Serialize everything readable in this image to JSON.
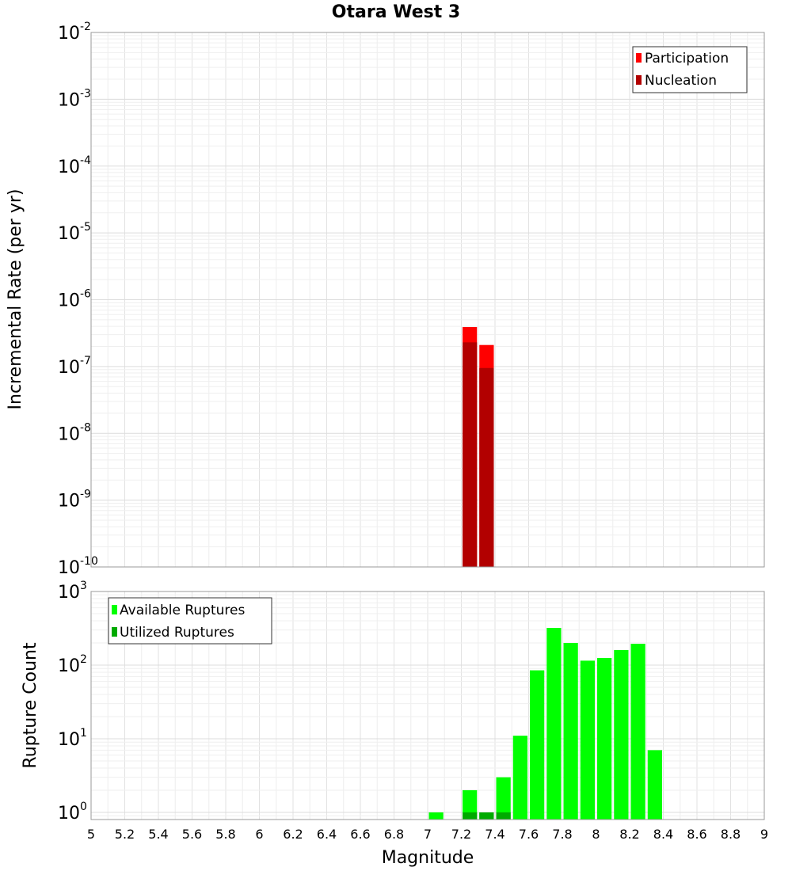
{
  "chart_data": [
    {
      "type": "bar",
      "title": "Otara West 3",
      "xlabel": "",
      "ylabel": "Incremental Rate (per yr)",
      "yscale": "log",
      "ylim": [
        1e-10,
        0.01
      ],
      "xlim": [
        5,
        9
      ],
      "bin_width": 0.1,
      "y_ticks": [
        {
          "base": "10",
          "exp": "-10",
          "value": 1e-10
        },
        {
          "base": "10",
          "exp": "-9",
          "value": 1e-09
        },
        {
          "base": "10",
          "exp": "-8",
          "value": 1e-08
        },
        {
          "base": "10",
          "exp": "-7",
          "value": 1e-07
        },
        {
          "base": "10",
          "exp": "-6",
          "value": 1e-06
        },
        {
          "base": "10",
          "exp": "-5",
          "value": 1e-05
        },
        {
          "base": "10",
          "exp": "-4",
          "value": 0.0001
        },
        {
          "base": "10",
          "exp": "-3",
          "value": 0.001
        },
        {
          "base": "10",
          "exp": "-2",
          "value": 0.01
        }
      ],
      "series": [
        {
          "name": "Participation",
          "color": "#ff0000",
          "x": [
            7.25,
            7.35
          ],
          "values": [
            3.9e-07,
            2.1e-07
          ]
        },
        {
          "name": "Nucleation",
          "color": "#b20000",
          "x": [
            7.25,
            7.35
          ],
          "values": [
            2.3e-07,
            9.5e-08
          ]
        }
      ],
      "legend": {
        "position": "top-right",
        "labels": [
          "Participation",
          "Nucleation"
        ]
      },
      "grid": true
    },
    {
      "type": "bar",
      "title": "",
      "xlabel": "Magnitude",
      "ylabel": "Rupture Count",
      "yscale": "log",
      "ylim": [
        0.8,
        1000
      ],
      "xlim": [
        5,
        9
      ],
      "bin_width": 0.1,
      "x_ticks": [
        "5",
        "5.2",
        "5.4",
        "5.6",
        "5.8",
        "6",
        "6.2",
        "6.4",
        "6.6",
        "6.8",
        "7",
        "7.2",
        "7.4",
        "7.6",
        "7.8",
        "8",
        "8.2",
        "8.4",
        "8.6",
        "8.8",
        "9"
      ],
      "y_ticks": [
        {
          "base": "10",
          "exp": "0",
          "value": 1
        },
        {
          "base": "10",
          "exp": "1",
          "value": 10
        },
        {
          "base": "10",
          "exp": "2",
          "value": 100
        },
        {
          "base": "10",
          "exp": "3",
          "value": 1000
        }
      ],
      "series": [
        {
          "name": "Available Ruptures",
          "color": "#00ff00",
          "x": [
            7.05,
            7.25,
            7.35,
            7.45,
            7.55,
            7.65,
            7.75,
            7.85,
            7.95,
            8.05,
            8.15,
            8.25,
            8.35
          ],
          "values": [
            1,
            2,
            1,
            3,
            11,
            85,
            320,
            200,
            115,
            125,
            160,
            195,
            7
          ]
        },
        {
          "name": "Utilized Ruptures",
          "color": "#00aa00",
          "x": [
            7.25,
            7.35,
            7.45
          ],
          "values": [
            1,
            1,
            1
          ]
        }
      ],
      "legend": {
        "position": "top-left",
        "labels": [
          "Available Ruptures",
          "Utilized Ruptures"
        ]
      },
      "grid": true
    }
  ]
}
